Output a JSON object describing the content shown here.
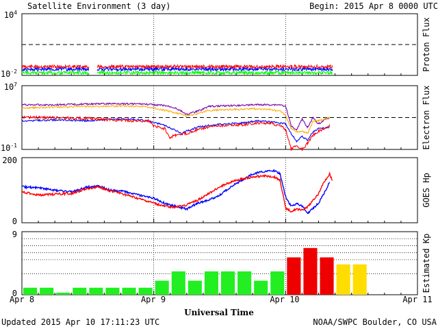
{
  "header": {
    "title": "Satellite Environment (3 day)",
    "begin": "Begin:  2015 Apr 8 0000 UTC"
  },
  "footer": {
    "updated": "Updated 2015 Apr 10 17:11:23 UTC",
    "source": "NOAA/SWPC Boulder, CO USA"
  },
  "x_axis": {
    "label": "Universal Time",
    "ticks": [
      "Apr 8",
      "Apr 9",
      "Apr 10",
      "Apr 11"
    ]
  },
  "colors": {
    "red": "#ff0000",
    "blue": "#0000ff",
    "green": "#00ff00",
    "purple": "#7700aa",
    "orange": "#ffaa00",
    "kp_green": "#22ee22",
    "kp_red": "#ee0000",
    "kp_yellow": "#ffdd00"
  },
  "chart_data": [
    {
      "type": "line",
      "panel": "proton",
      "ylabel": "Proton Flux",
      "yscale": "log",
      "ylim_exp": [
        -2,
        4
      ],
      "ytick_labels": [
        "10^4",
        "10^-2"
      ],
      "threshold_exp": 1,
      "xlim_hours": [
        0,
        72
      ],
      "data_gap_hours": [
        12.2,
        13.7
      ],
      "data_end_hours": 56.5,
      "series": [
        {
          "color": "red",
          "level_exp": -1.15
        },
        {
          "color": "blue",
          "level_exp": -1.4
        },
        {
          "color": "green",
          "level_exp": -1.75
        }
      ]
    },
    {
      "type": "line",
      "panel": "electron",
      "ylabel": "Electron Flux",
      "yscale": "log",
      "ylim_exp": [
        -1,
        7
      ],
      "ytick_labels": [
        "10^7",
        "10^-1"
      ],
      "threshold_exp": 3,
      "xlim_hours": [
        0,
        72
      ],
      "series": [
        {
          "color": "purple",
          "points": [
            [
              0,
              4.6
            ],
            [
              6,
              4.6
            ],
            [
              12,
              4.7
            ],
            [
              18,
              4.75
            ],
            [
              22,
              4.7
            ],
            [
              24,
              4.6
            ],
            [
              26,
              4.5
            ],
            [
              28,
              4.2
            ],
            [
              30,
              3.4
            ],
            [
              32,
              3.8
            ],
            [
              34,
              4.4
            ],
            [
              38,
              4.5
            ],
            [
              42,
              4.6
            ],
            [
              45,
              4.6
            ],
            [
              47,
              4.6
            ],
            [
              48,
              4.4
            ],
            [
              49,
              2.0
            ],
            [
              50,
              1.5
            ],
            [
              51,
              2.8
            ],
            [
              52,
              1.8
            ],
            [
              53,
              3.0
            ],
            [
              54,
              2.2
            ],
            [
              55,
              2.7
            ],
            [
              56,
              3.0
            ]
          ]
        },
        {
          "color": "orange",
          "points": [
            [
              0,
              4.2
            ],
            [
              6,
              4.3
            ],
            [
              12,
              4.4
            ],
            [
              18,
              4.45
            ],
            [
              22,
              4.4
            ],
            [
              24,
              4.2
            ],
            [
              26,
              3.9
            ],
            [
              28,
              3.6
            ],
            [
              30,
              3.2
            ],
            [
              32,
              3.5
            ],
            [
              34,
              3.9
            ],
            [
              38,
              4.0
            ],
            [
              42,
              4.1
            ],
            [
              45,
              4.0
            ],
            [
              47,
              3.8
            ],
            [
              48,
              3.3
            ],
            [
              49,
              1.6
            ],
            [
              50,
              1.2
            ],
            [
              51,
              1.3
            ],
            [
              52,
              1.0
            ],
            [
              53,
              2.5
            ],
            [
              54,
              2.6
            ],
            [
              55,
              2.8
            ],
            [
              56,
              3.0
            ]
          ]
        },
        {
          "color": "blue",
          "points": [
            [
              0,
              2.6
            ],
            [
              6,
              2.7
            ],
            [
              12,
              2.6
            ],
            [
              16,
              2.8
            ],
            [
              20,
              2.8
            ],
            [
              23,
              2.6
            ],
            [
              24,
              2.4
            ],
            [
              26,
              2.0
            ],
            [
              28,
              1.4
            ],
            [
              29,
              1.0
            ],
            [
              30,
              1.3
            ],
            [
              32,
              1.8
            ],
            [
              34,
              2.0
            ],
            [
              36,
              2.2
            ],
            [
              40,
              2.3
            ],
            [
              43,
              2.6
            ],
            [
              45,
              2.5
            ],
            [
              47,
              2.3
            ],
            [
              48,
              2.2
            ],
            [
              49,
              1.0
            ],
            [
              50,
              0.0
            ],
            [
              51,
              0.6
            ],
            [
              52,
              0.2
            ],
            [
              53,
              1.2
            ],
            [
              54,
              1.6
            ],
            [
              55,
              1.7
            ],
            [
              56,
              1.8
            ]
          ]
        },
        {
          "color": "red",
          "points": [
            [
              0,
              3.0
            ],
            [
              6,
              3.0
            ],
            [
              12,
              2.9
            ],
            [
              16,
              2.7
            ],
            [
              20,
              2.6
            ],
            [
              23,
              2.6
            ],
            [
              24,
              2.0
            ],
            [
              26,
              1.6
            ],
            [
              27,
              0.5
            ],
            [
              28,
              0.8
            ],
            [
              30,
              1.0
            ],
            [
              32,
              1.5
            ],
            [
              34,
              1.8
            ],
            [
              36,
              2.0
            ],
            [
              40,
              2.1
            ],
            [
              43,
              2.3
            ],
            [
              45,
              2.3
            ],
            [
              47,
              2.0
            ],
            [
              48,
              1.5
            ],
            [
              49,
              -1.0
            ],
            [
              50,
              -0.5
            ],
            [
              51,
              -1.0
            ],
            [
              52,
              -0.2
            ],
            [
              53,
              0.8
            ],
            [
              54,
              1.3
            ],
            [
              55,
              1.6
            ],
            [
              56,
              1.9
            ]
          ]
        }
      ]
    },
    {
      "type": "line",
      "panel": "goes_hp",
      "ylabel": "GOES Hp",
      "ylim": [
        0,
        200
      ],
      "ytick_labels": [
        "200",
        "0"
      ],
      "xlim_hours": [
        0,
        72
      ],
      "series": [
        {
          "color": "blue",
          "points": [
            [
              0,
              110
            ],
            [
              3,
              108
            ],
            [
              6,
              100
            ],
            [
              9,
              95
            ],
            [
              12,
              110
            ],
            [
              14,
              112
            ],
            [
              16,
              100
            ],
            [
              18,
              98
            ],
            [
              20,
              90
            ],
            [
              22,
              82
            ],
            [
              24,
              75
            ],
            [
              26,
              60
            ],
            [
              28,
              50
            ],
            [
              30,
              42
            ],
            [
              32,
              60
            ],
            [
              34,
              70
            ],
            [
              36,
              85
            ],
            [
              38,
              110
            ],
            [
              40,
              130
            ],
            [
              42,
              150
            ],
            [
              44,
              158
            ],
            [
              46,
              160
            ],
            [
              47,
              150
            ],
            [
              48,
              80
            ],
            [
              49,
              50
            ],
            [
              50,
              58
            ],
            [
              51,
              52
            ],
            [
              52,
              28
            ],
            [
              53,
              45
            ],
            [
              54,
              60
            ],
            [
              55,
              90
            ],
            [
              56,
              125
            ]
          ]
        },
        {
          "color": "red",
          "points": [
            [
              0,
              95
            ],
            [
              3,
              85
            ],
            [
              6,
              88
            ],
            [
              9,
              90
            ],
            [
              12,
              105
            ],
            [
              14,
              110
            ],
            [
              16,
              98
            ],
            [
              18,
              90
            ],
            [
              20,
              80
            ],
            [
              22,
              70
            ],
            [
              24,
              60
            ],
            [
              26,
              50
            ],
            [
              28,
              48
            ],
            [
              30,
              55
            ],
            [
              32,
              70
            ],
            [
              34,
              90
            ],
            [
              36,
              110
            ],
            [
              38,
              125
            ],
            [
              40,
              135
            ],
            [
              42,
              140
            ],
            [
              44,
              145
            ],
            [
              46,
              140
            ],
            [
              47,
              130
            ],
            [
              48,
              45
            ],
            [
              49,
              35
            ],
            [
              50,
              42
            ],
            [
              51,
              40
            ],
            [
              52,
              48
            ],
            [
              53,
              68
            ],
            [
              54,
              90
            ],
            [
              55,
              125
            ],
            [
              56,
              150
            ],
            [
              56.5,
              130
            ]
          ]
        }
      ]
    },
    {
      "type": "bar",
      "panel": "estimated_kp",
      "ylabel": "Estimated Kp",
      "ylim": [
        0,
        9
      ],
      "ytick_labels": [
        "9",
        "0"
      ],
      "xlim_hours": [
        0,
        72
      ],
      "bin_hours": 3,
      "values": [
        1,
        1,
        0.3,
        1,
        1,
        1,
        1,
        1,
        2,
        3.33,
        2,
        3.33,
        3.33,
        3.33,
        2,
        3.33,
        5.33,
        6.67,
        5.33,
        4.33,
        4.33
      ],
      "bar_colors": [
        "green",
        "green",
        "green",
        "green",
        "green",
        "green",
        "green",
        "green",
        "green",
        "green",
        "green",
        "green",
        "green",
        "green",
        "green",
        "green",
        "red",
        "red",
        "red",
        "yellow",
        "yellow"
      ]
    }
  ]
}
